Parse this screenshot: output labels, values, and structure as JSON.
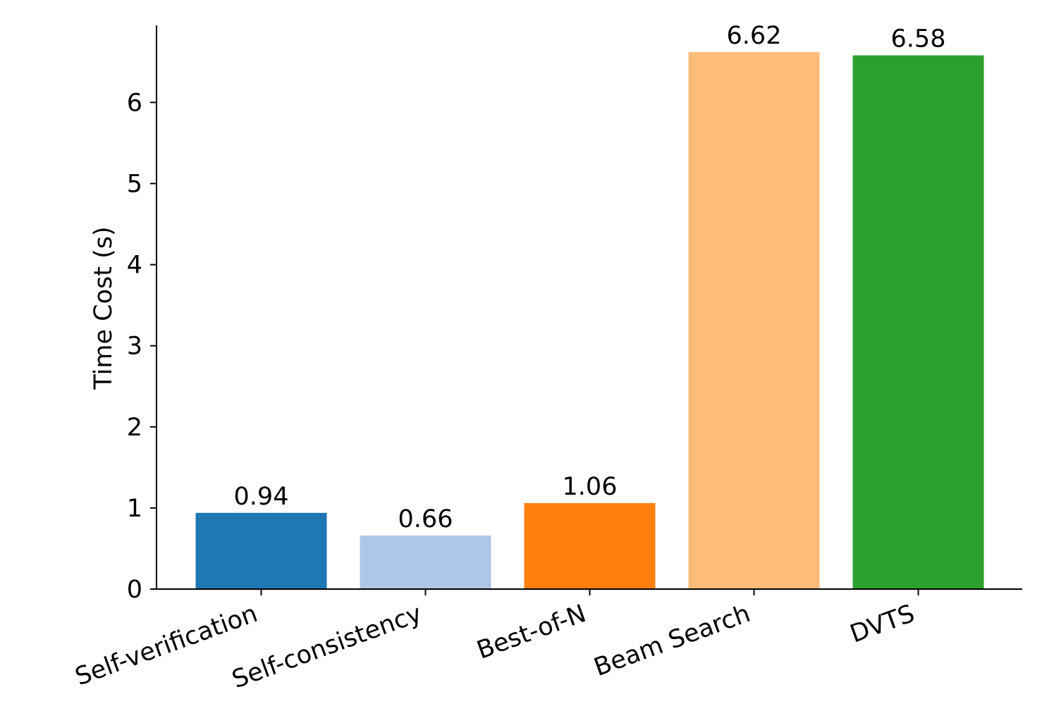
{
  "chart_data": {
    "type": "bar",
    "title": "",
    "xlabel": "",
    "ylabel": "Time Cost (s)",
    "categories": [
      "Self-verification",
      "Self-consistency",
      "Best-of-N",
      "Beam Search",
      "DVTS"
    ],
    "values": [
      0.94,
      0.66,
      1.06,
      6.62,
      6.58
    ],
    "value_labels": [
      "0.94",
      "0.66",
      "1.06",
      "6.62",
      "6.58"
    ],
    "colors": [
      "#1f77b4",
      "#aec7e8",
      "#ff7f0e",
      "#ffbb78",
      "#2ca02c"
    ],
    "ylim": [
      0,
      6.95
    ],
    "yticks": [
      0,
      1,
      2,
      3,
      4,
      5,
      6
    ],
    "grid": false,
    "legend": "none",
    "xtick_rotation_deg": -20
  }
}
